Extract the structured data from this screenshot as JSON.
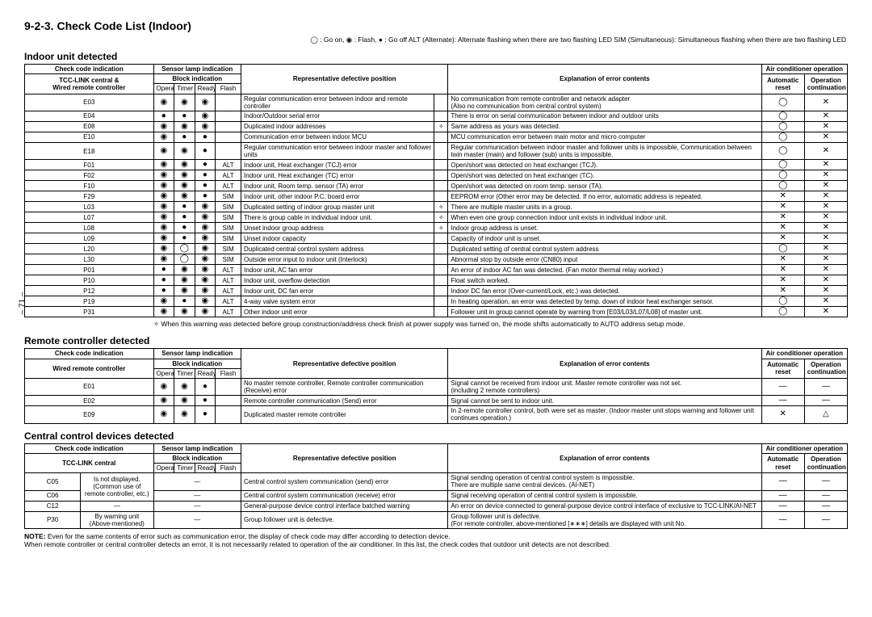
{
  "pageNumber": "– 71 –",
  "title": "9-2-3.  Check Code List (Indoor)",
  "legend": "◯ : Go on,  ◉ : Flash,  ● : Go off    ALT (Alternate): Alternate flashing when there are two flashing LED    SIM (Simultaneous): Simultaneous flashing when there are two flashing LED",
  "sections": {
    "indoor": {
      "heading": "Indoor unit detected",
      "footnote": "✧ When this warning was detected before group construction/address check finish at power supply was turned on, the mode shifts automatically to AUTO address setup mode."
    },
    "remote": {
      "heading": "Remote controller detected"
    },
    "central": {
      "heading": "Central control devices detected"
    }
  },
  "headers": {
    "checkCode": "Check code indication",
    "sensorLamp": "Sensor lamp indication",
    "blockInd": "Block indication",
    "tccLink": "TCC-LINK central &\nWired remote controller",
    "tccLinkOnly": "TCC-LINK central",
    "wiredRemote": "Wired remote controller",
    "operation": "Operation",
    "timer": "Timer",
    "ready": "Ready",
    "flash": "Flash",
    "defPos": "Representative defective position",
    "explanation": "Explanation of error contents",
    "airCond": "Air conditioner operation",
    "autoReset": "Automatic\nreset",
    "opCont": "Operation\ncontinuation"
  },
  "symbols": {
    "goon": "◯",
    "flash": "◉",
    "gooff": "●",
    "x": "✕",
    "tri": "△",
    "dash": "—",
    "diamond": "✧"
  },
  "indoorRows": [
    {
      "code": "E03",
      "op": "◉",
      "tm": "◉",
      "rd": "◉",
      "fl": "",
      "pos": "Regular communication error between indoor and remote controller",
      "mk": "",
      "exp": "No communication from remote controller and network adapter\n(Also no communication from central control system)",
      "ar": "◯",
      "oc": "✕"
    },
    {
      "code": "E04",
      "op": "●",
      "tm": "●",
      "rd": "◉",
      "fl": "",
      "pos": "Indoor/Outdoor serial error",
      "mk": "",
      "exp": "There is error on serial communication between indoor and outdoor units",
      "ar": "◯",
      "oc": "✕"
    },
    {
      "code": "E08",
      "op": "◉",
      "tm": "◉",
      "rd": "◉",
      "fl": "",
      "pos": "Duplicated indoor addresses",
      "mk": "✧",
      "exp": "Same address as yours was detected.",
      "ar": "◯",
      "oc": "✕"
    },
    {
      "code": "E10",
      "op": "◉",
      "tm": "●",
      "rd": "●",
      "fl": "",
      "pos": "Communication error between indoor MCU",
      "mk": "",
      "exp": "MCU communication error between main motor and micro computer",
      "ar": "◯",
      "oc": "✕"
    },
    {
      "code": "E18",
      "op": "◉",
      "tm": "◉",
      "rd": "●",
      "fl": "",
      "pos": "Regular communication error between indoor master and follower units",
      "mk": "",
      "exp": "Regular communication between indoor master and follower units is impossible, Communication between twin master (main) and follower (sub) units is impossible.",
      "ar": "◯",
      "oc": "✕"
    },
    {
      "code": "F01",
      "op": "◉",
      "tm": "◉",
      "rd": "●",
      "fl": "ALT",
      "pos": "Indoor unit, Heat exchanger (TCJ) error",
      "mk": "",
      "exp": "Open/short was detected on heat exchanger (TCJ).",
      "ar": "◯",
      "oc": "✕"
    },
    {
      "code": "F02",
      "op": "◉",
      "tm": "◉",
      "rd": "●",
      "fl": "ALT",
      "pos": "Indoor unit, Heat exchanger (TC) error",
      "mk": "",
      "exp": "Open/short was detected on heat exchanger (TC).",
      "ar": "◯",
      "oc": "✕"
    },
    {
      "code": "F10",
      "op": "◉",
      "tm": "◉",
      "rd": "●",
      "fl": "ALT",
      "pos": "Indoor unit, Room temp. sensor (TA) error",
      "mk": "",
      "exp": "Open/short was detected on room temp. sensor (TA).",
      "ar": "◯",
      "oc": "✕"
    },
    {
      "code": "F29",
      "op": "◉",
      "tm": "◉",
      "rd": "●",
      "fl": "SIM",
      "pos": "Indoor unit, other indoor P.C. board error",
      "mk": "",
      "exp": "EEPROM error (Other error may be detected. If no error, automatic address is repeated.",
      "ar": "✕",
      "oc": "✕"
    },
    {
      "code": "L03",
      "op": "◉",
      "tm": "●",
      "rd": "◉",
      "fl": "SIM",
      "pos": "Duplicated setting of indoor group master unit",
      "mk": "✧",
      "exp": "There are multiple master units in a group.",
      "ar": "✕",
      "oc": "✕"
    },
    {
      "code": "L07",
      "op": "◉",
      "tm": "●",
      "rd": "◉",
      "fl": "SIM",
      "pos": "There is group cable in individual indoor unit.",
      "mk": "✧",
      "exp": "When even one group connection indoor unit exists in individual indoor unit.",
      "ar": "✕",
      "oc": "✕"
    },
    {
      "code": "L08",
      "op": "◉",
      "tm": "●",
      "rd": "◉",
      "fl": "SIM",
      "pos": "Unset indoor group address",
      "mk": "✧",
      "exp": "Indoor group address is unset.",
      "ar": "✕",
      "oc": "✕"
    },
    {
      "code": "L09",
      "op": "◉",
      "tm": "●",
      "rd": "◉",
      "fl": "SIM",
      "pos": "Unset indoor capacity",
      "mk": "",
      "exp": "Capacity of indoor unit is unset.",
      "ar": "✕",
      "oc": "✕"
    },
    {
      "code": "L20",
      "op": "◉",
      "tm": "◯",
      "rd": "◉",
      "fl": "SIM",
      "pos": "Duplicated central control system address",
      "mk": "",
      "exp": "Duplicated setting of central control system address",
      "ar": "◯",
      "oc": "✕"
    },
    {
      "code": "L30",
      "op": "◉",
      "tm": "◯",
      "rd": "◉",
      "fl": "SIM",
      "pos": "Outside error input to indoor unit (Interlock)",
      "mk": "",
      "exp": "Abnormal stop by outside error (CN80) input",
      "ar": "✕",
      "oc": "✕"
    },
    {
      "code": "P01",
      "op": "●",
      "tm": "◉",
      "rd": "◉",
      "fl": "ALT",
      "pos": "Indoor unit, AC fan error",
      "mk": "",
      "exp": "An error of indoor AC fan was detected. (Fan motor thermal relay worked.)",
      "ar": "✕",
      "oc": "✕"
    },
    {
      "code": "P10",
      "op": "●",
      "tm": "◉",
      "rd": "◉",
      "fl": "ALT",
      "pos": "Indoor unit, overflow detection",
      "mk": "",
      "exp": "Float switch worked.",
      "ar": "✕",
      "oc": "✕"
    },
    {
      "code": "P12",
      "op": "●",
      "tm": "◉",
      "rd": "◉",
      "fl": "ALT",
      "pos": "Indoor unit, DC fan error",
      "mk": "",
      "exp": "Indoor DC fan error (Over-current/Lock, etc.) was detected.",
      "ar": "✕",
      "oc": "✕"
    },
    {
      "code": "P19",
      "op": "◉",
      "tm": "●",
      "rd": "◉",
      "fl": "ALT",
      "pos": "4-way valve system error",
      "mk": "",
      "exp": "In heating operation, an error was detected by temp. down of indoor heat exchanger sensor.",
      "ar": "◯",
      "oc": "✕"
    },
    {
      "code": "P31",
      "op": "◉",
      "tm": "◉",
      "rd": "◉",
      "fl": "ALT",
      "pos": "Other indoor unit error",
      "mk": "",
      "exp": "Follower unit in group cannot operate by warning from [E03/L03/L07/L08] of master unit.",
      "ar": "◯",
      "oc": "✕"
    }
  ],
  "remoteRows": [
    {
      "code": "E01",
      "op": "◉",
      "tm": "◉",
      "rd": "●",
      "fl": "",
      "pos": "No master remote controller, Remote controller communication (Receive) error",
      "exp": "Signal cannot be received from indoor unit. Master remote controller was not set.\n(including 2 remote controllers)",
      "ar": "—",
      "oc": "—"
    },
    {
      "code": "E02",
      "op": "◉",
      "tm": "◉",
      "rd": "●",
      "fl": "",
      "pos": "Remote controller communication (Send) error",
      "exp": "Signal cannot be sent to indoor unit.",
      "ar": "—",
      "oc": "—"
    },
    {
      "code": "E09",
      "op": "◉",
      "tm": "◉",
      "rd": "●",
      "fl": "",
      "pos": "Duplicated master remote controller",
      "exp": "In 2-remote controller control, both were set as master. (Indoor master unit stops warning and follower unit continues operation.)",
      "ar": "✕",
      "oc": "△"
    }
  ],
  "centralRows": [
    {
      "code": "C05",
      "sub": "Is not displayed.\n(Common use of remote controller, etc.)",
      "subspan": 2,
      "lamp": "—",
      "pos": "Central control system communication (send) error",
      "exp": "Signal sending operation of central control system is impossible.\nThere are multiple same central devices. (AI-NET)",
      "ar": "—",
      "oc": "—"
    },
    {
      "code": "C06",
      "lamp": "—",
      "pos": "Central control system communication (receive) error",
      "exp": "Signal receiving operation of central control system is impossible.",
      "ar": "—",
      "oc": "—"
    },
    {
      "code": "C12",
      "sub": "—",
      "lamp": "—",
      "pos": "General-purpose device control interface batched warning",
      "exp": "An error on device connected to general-purpose device control interface of exclusive to TCC-LINK/AI-NET",
      "ar": "—",
      "oc": "—"
    },
    {
      "code": "P30",
      "sub": "By warning unit\n(Above-mentioned)",
      "lamp": "—",
      "pos": "Group follower unit is defective.",
      "exp": "Group follower unit is defective.\n(For remote controller, above-mentioned [∗∗∗] details are displayed with unit No.",
      "ar": "—",
      "oc": "—"
    }
  ],
  "note": {
    "label": "NOTE:",
    "text": "Even for the same contents of error such as communication error, the display of check code may differ according to detection device.\nWhen remote controller or central controller detects an error, it is not necessarily related to operation of the air conditioner. In this list, the check codes that outdoor unit detects are not described."
  }
}
